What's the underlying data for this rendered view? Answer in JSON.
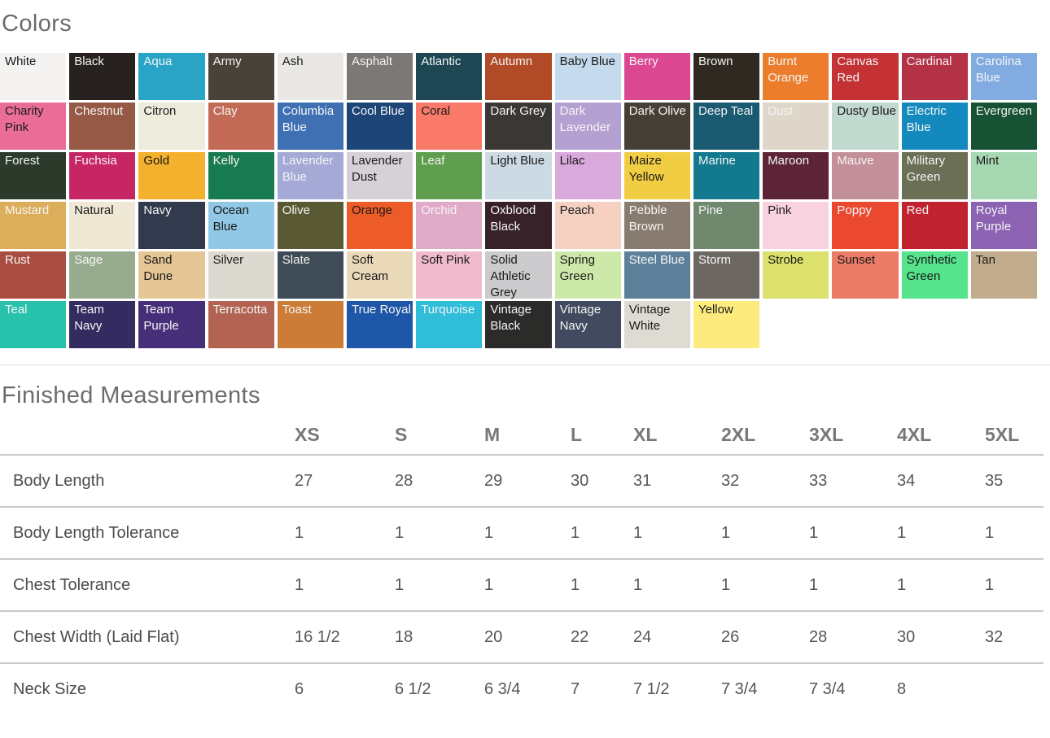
{
  "page": {
    "colors_title": "Colors",
    "measurements_title": "Finished Measurements"
  },
  "colors": {
    "swatches": [
      {
        "name": "White",
        "bg": "#f4f3f1",
        "text": "#1a1a1a"
      },
      {
        "name": "Black",
        "bg": "#272220",
        "text": "#f5f5f5"
      },
      {
        "name": "Aqua",
        "bg": "#29a3c6",
        "text": "#f5f5f5"
      },
      {
        "name": "Army",
        "bg": "#494239",
        "text": "#f5f5f5"
      },
      {
        "name": "Ash",
        "bg": "#e9e8e4",
        "text": "#1a1a1a"
      },
      {
        "name": "Asphalt",
        "bg": "#7b7876",
        "text": "#f5f5f5"
      },
      {
        "name": "Atlantic",
        "bg": "#1d4753",
        "text": "#f5f5f5"
      },
      {
        "name": "Autumn",
        "bg": "#b04a27",
        "text": "#f5f5f5"
      },
      {
        "name": "Baby Blue",
        "bg": "#c5daec",
        "text": "#1a1a1a"
      },
      {
        "name": "Berry",
        "bg": "#dc4791",
        "text": "#f5f5f5"
      },
      {
        "name": "Brown",
        "bg": "#2f2922",
        "text": "#f5f5f5"
      },
      {
        "name": "Burnt Orange",
        "bg": "#ec7d2c",
        "text": "#f5f5f5"
      },
      {
        "name": "Canvas Red",
        "bg": "#c43236",
        "text": "#f5f5f5"
      },
      {
        "name": "Cardinal",
        "bg": "#b43246",
        "text": "#f5f5f5"
      },
      {
        "name": "Carolina Blue",
        "bg": "#82abe2",
        "text": "#f5f5f5"
      },
      {
        "name": "Charity Pink",
        "bg": "#ea6d97",
        "text": "#1a1a1a"
      },
      {
        "name": "Chestnut",
        "bg": "#955946",
        "text": "#f5f5f5"
      },
      {
        "name": "Citron",
        "bg": "#edecdc",
        "text": "#1a1a1a"
      },
      {
        "name": "Clay",
        "bg": "#c26a56",
        "text": "#f5f5f5"
      },
      {
        "name": "Columbia Blue",
        "bg": "#4070b4",
        "text": "#f5f5f5"
      },
      {
        "name": "Cool Blue",
        "bg": "#1d4577",
        "text": "#f5f5f5"
      },
      {
        "name": "Coral",
        "bg": "#fa7a6a",
        "text": "#1a1a1a"
      },
      {
        "name": "Dark Grey",
        "bg": "#3b3734",
        "text": "#f5f5f5"
      },
      {
        "name": "Dark Lavender",
        "bg": "#b5a0d2",
        "text": "#f5f5f5"
      },
      {
        "name": "Dark Olive",
        "bg": "#453f35",
        "text": "#f5f5f5"
      },
      {
        "name": "Deep Teal",
        "bg": "#1a5a71",
        "text": "#f5f5f5"
      },
      {
        "name": "Dust",
        "bg": "#ded7c9",
        "text": "#f5f5f5"
      },
      {
        "name": "Dusty Blue",
        "bg": "#c2d9d0",
        "text": "#1a1a1a"
      },
      {
        "name": "Electric Blue",
        "bg": "#1489be",
        "text": "#f5f5f5"
      },
      {
        "name": "Evergreen",
        "bg": "#165233",
        "text": "#f5f5f5"
      },
      {
        "name": "Forest",
        "bg": "#2c3a2c",
        "text": "#f5f5f5"
      },
      {
        "name": "Fuchsia",
        "bg": "#c62764",
        "text": "#f5f5f5"
      },
      {
        "name": "Gold",
        "bg": "#f4b12d",
        "text": "#1a1a1a"
      },
      {
        "name": "Kelly",
        "bg": "#187a50",
        "text": "#f5f5f5"
      },
      {
        "name": "Lavender Blue",
        "bg": "#a4a9d6",
        "text": "#f5f5f5"
      },
      {
        "name": "Lavender Dust",
        "bg": "#d6d1d7",
        "text": "#1a1a1a"
      },
      {
        "name": "Leaf",
        "bg": "#5f9e4f",
        "text": "#f5f5f5"
      },
      {
        "name": "Light Blue",
        "bg": "#ccdae3",
        "text": "#1a1a1a"
      },
      {
        "name": "Lilac",
        "bg": "#d9a9dc",
        "text": "#1a1a1a"
      },
      {
        "name": "Maize Yellow",
        "bg": "#f1cd43",
        "text": "#1a1a1a"
      },
      {
        "name": "Marine",
        "bg": "#13798f",
        "text": "#f5f5f5"
      },
      {
        "name": "Maroon",
        "bg": "#5c2436",
        "text": "#f5f5f5"
      },
      {
        "name": "Mauve",
        "bg": "#c3909a",
        "text": "#f5f5f5"
      },
      {
        "name": "Military Green",
        "bg": "#6b6f56",
        "text": "#f5f5f5"
      },
      {
        "name": "Mint",
        "bg": "#a6d8b2",
        "text": "#1a1a1a"
      },
      {
        "name": "Mustard",
        "bg": "#dcad5b",
        "text": "#f5f5f5"
      },
      {
        "name": "Natural",
        "bg": "#efe8d5",
        "text": "#1a1a1a"
      },
      {
        "name": "Navy",
        "bg": "#323b4e",
        "text": "#f5f5f5"
      },
      {
        "name": "Ocean Blue",
        "bg": "#90c8e6",
        "text": "#1a1a1a"
      },
      {
        "name": "Olive",
        "bg": "#595a33",
        "text": "#f5f5f5"
      },
      {
        "name": "Orange",
        "bg": "#ed5c28",
        "text": "#1a1a1a"
      },
      {
        "name": "Orchid",
        "bg": "#e0abc9",
        "text": "#f5f5f5"
      },
      {
        "name": "Oxblood Black",
        "bg": "#38222a",
        "text": "#f5f5f5"
      },
      {
        "name": "Peach",
        "bg": "#f6d1c1",
        "text": "#1a1a1a"
      },
      {
        "name": "Pebble Brown",
        "bg": "#887b6f",
        "text": "#f5f5f5"
      },
      {
        "name": "Pine",
        "bg": "#70896e",
        "text": "#f5f5f5"
      },
      {
        "name": "Pink",
        "bg": "#f8d2df",
        "text": "#1a1a1a"
      },
      {
        "name": "Poppy",
        "bg": "#ea482f",
        "text": "#f5f5f5"
      },
      {
        "name": "Red",
        "bg": "#c0232f",
        "text": "#f5f5f5"
      },
      {
        "name": "Royal Purple",
        "bg": "#8b63b2",
        "text": "#f5f5f5"
      },
      {
        "name": "Rust",
        "bg": "#a94d42",
        "text": "#f5f5f5"
      },
      {
        "name": "Sage",
        "bg": "#97ac8f",
        "text": "#f5f5f5"
      },
      {
        "name": "Sand Dune",
        "bg": "#e6c695",
        "text": "#1a1a1a"
      },
      {
        "name": "Silver",
        "bg": "#dcd9d1",
        "text": "#1a1a1a"
      },
      {
        "name": "Slate",
        "bg": "#3f4b56",
        "text": "#f5f5f5"
      },
      {
        "name": "Soft Cream",
        "bg": "#ead9b9",
        "text": "#1a1a1a"
      },
      {
        "name": "Soft Pink",
        "bg": "#f0bacd",
        "text": "#1a1a1a"
      },
      {
        "name": "Solid Athletic Grey",
        "bg": "#cbcbcd",
        "text": "#1a1a1a"
      },
      {
        "name": "Spring Green",
        "bg": "#cde9a9",
        "text": "#1a1a1a"
      },
      {
        "name": "Steel Blue",
        "bg": "#5c809a",
        "text": "#f5f5f5"
      },
      {
        "name": "Storm",
        "bg": "#6d6762",
        "text": "#f5f5f5"
      },
      {
        "name": "Strobe",
        "bg": "#dce06c",
        "text": "#1a1a1a"
      },
      {
        "name": "Sunset",
        "bg": "#eb7c67",
        "text": "#1a1a1a"
      },
      {
        "name": "Synthetic Green",
        "bg": "#55e38c",
        "text": "#1a1a1a"
      },
      {
        "name": "Tan",
        "bg": "#c1ac8d",
        "text": "#1a1a1a"
      },
      {
        "name": "Teal",
        "bg": "#27c1ac",
        "text": "#f5f5f5"
      },
      {
        "name": "Team Navy",
        "bg": "#342b60",
        "text": "#f5f5f5"
      },
      {
        "name": "Team Purple",
        "bg": "#472e79",
        "text": "#f5f5f5"
      },
      {
        "name": "Terracotta",
        "bg": "#b26351",
        "text": "#f5f5f5"
      },
      {
        "name": "Toast",
        "bg": "#cc7c36",
        "text": "#f5f5f5"
      },
      {
        "name": "True Royal",
        "bg": "#1e57a7",
        "text": "#f5f5f5"
      },
      {
        "name": "Turquoise",
        "bg": "#2fbdda",
        "text": "#f5f5f5"
      },
      {
        "name": "Vintage Black",
        "bg": "#2b2b29",
        "text": "#f5f5f5"
      },
      {
        "name": "Vintage Navy",
        "bg": "#414a5e",
        "text": "#f5f5f5"
      },
      {
        "name": "Vintage White",
        "bg": "#dedbd3",
        "text": "#1a1a1a"
      },
      {
        "name": "Yellow",
        "bg": "#fdeb7e",
        "text": "#1a1a1a"
      }
    ]
  },
  "measurements": {
    "sizes": [
      "XS",
      "S",
      "M",
      "L",
      "XL",
      "2XL",
      "3XL",
      "4XL",
      "5XL"
    ],
    "rows": [
      {
        "label": "Body Length",
        "values": [
          "27",
          "28",
          "29",
          "30",
          "31",
          "32",
          "33",
          "34",
          "35"
        ]
      },
      {
        "label": "Body Length Tolerance",
        "values": [
          "1",
          "1",
          "1",
          "1",
          "1",
          "1",
          "1",
          "1",
          "1"
        ]
      },
      {
        "label": "Chest Tolerance",
        "values": [
          "1",
          "1",
          "1",
          "1",
          "1",
          "1",
          "1",
          "1",
          "1"
        ]
      },
      {
        "label": "Chest Width (Laid Flat)",
        "values": [
          "16 1/2",
          "18",
          "20",
          "22",
          "24",
          "26",
          "28",
          "30",
          "32"
        ]
      },
      {
        "label": "Neck Size",
        "values": [
          "6",
          "6 1/2",
          "6 3/4",
          "7",
          "7 1/2",
          "7 3/4",
          "7 3/4",
          "8",
          ""
        ]
      }
    ]
  }
}
